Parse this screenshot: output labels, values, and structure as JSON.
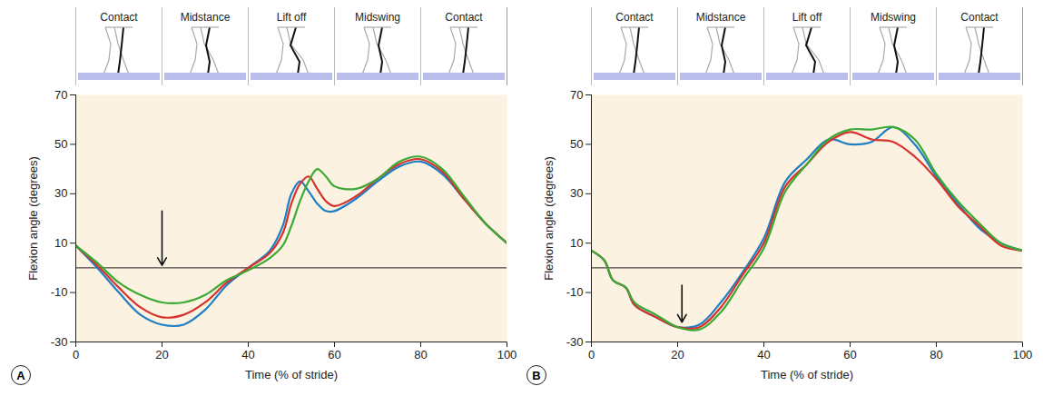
{
  "chart_data": [
    {
      "type": "line",
      "label": "A",
      "phases": [
        "Contact",
        "Midstance",
        "Lift off",
        "Midswing",
        "Contact"
      ],
      "x_label": "Time (% of stride)",
      "y_label": "Flexion angle (degrees)",
      "xlim": [
        0,
        100
      ],
      "xticks": [
        0,
        20,
        40,
        60,
        80,
        100
      ],
      "ylim": [
        -30,
        70
      ],
      "yticks": [
        -30,
        -10,
        10,
        30,
        50,
        70
      ],
      "hline": 0,
      "arrow": {
        "x": 20,
        "y1": 23,
        "y2": 1
      },
      "x": [
        0,
        5,
        10,
        15,
        20,
        25,
        30,
        35,
        40,
        45,
        48,
        50,
        52,
        54,
        56,
        58,
        60,
        65,
        70,
        75,
        80,
        85,
        90,
        95,
        100
      ],
      "series": [
        {
          "color": "#1f7fc4",
          "values": [
            9,
            0,
            -10,
            -19,
            -23,
            -23,
            -17,
            -7,
            0,
            7,
            17,
            30,
            35,
            31,
            26,
            23,
            23,
            28,
            35,
            41,
            43,
            38,
            28,
            18,
            10
          ]
        },
        {
          "color": "#d7312d",
          "values": [
            9,
            1,
            -8,
            -16,
            -20,
            -19,
            -14,
            -6,
            0,
            6,
            14,
            26,
            34,
            37,
            32,
            27,
            25,
            29,
            36,
            42,
            44,
            39,
            28,
            18,
            10
          ]
        },
        {
          "color": "#3aaa35",
          "values": [
            9,
            2,
            -6,
            -11,
            -14,
            -14,
            -11,
            -5,
            -1,
            4,
            9,
            17,
            27,
            35,
            40,
            37,
            33,
            32,
            36,
            43,
            45,
            40,
            29,
            18,
            10
          ]
        }
      ]
    },
    {
      "type": "line",
      "label": "B",
      "phases": [
        "Contact",
        "Midstance",
        "Lift off",
        "Midswing",
        "Contact"
      ],
      "x_label": "Time (% of stride)",
      "y_label": "Flexion angle (degrees)",
      "xlim": [
        0,
        100
      ],
      "xticks": [
        0,
        20,
        40,
        60,
        80,
        100
      ],
      "ylim": [
        -30,
        70
      ],
      "yticks": [
        -30,
        -10,
        10,
        30,
        50,
        70
      ],
      "hline": 0,
      "arrow": {
        "x": 21,
        "y1": -7,
        "y2": -22
      },
      "x": [
        0,
        3,
        5,
        8,
        10,
        15,
        20,
        25,
        30,
        35,
        40,
        45,
        50,
        55,
        60,
        65,
        70,
        75,
        80,
        85,
        90,
        95,
        100
      ],
      "series": [
        {
          "color": "#1f7fc4",
          "values": [
            7,
            3,
            -5,
            -8,
            -15,
            -20,
            -24,
            -23,
            -14,
            -2,
            12,
            35,
            44,
            52,
            50,
            51,
            57,
            50,
            37,
            26,
            16,
            10,
            7
          ]
        },
        {
          "color": "#d7312d",
          "values": [
            7,
            3,
            -5,
            -8,
            -15,
            -20,
            -24,
            -24,
            -16,
            -3,
            10,
            33,
            42,
            51,
            55,
            52,
            51,
            45,
            36,
            25,
            17,
            9,
            7
          ]
        },
        {
          "color": "#3aaa35",
          "values": [
            7,
            3,
            -5,
            -8,
            -14,
            -19,
            -24,
            -25,
            -18,
            -5,
            8,
            31,
            42,
            52,
            56,
            56,
            57,
            52,
            38,
            27,
            18,
            10,
            7
          ]
        }
      ]
    }
  ]
}
